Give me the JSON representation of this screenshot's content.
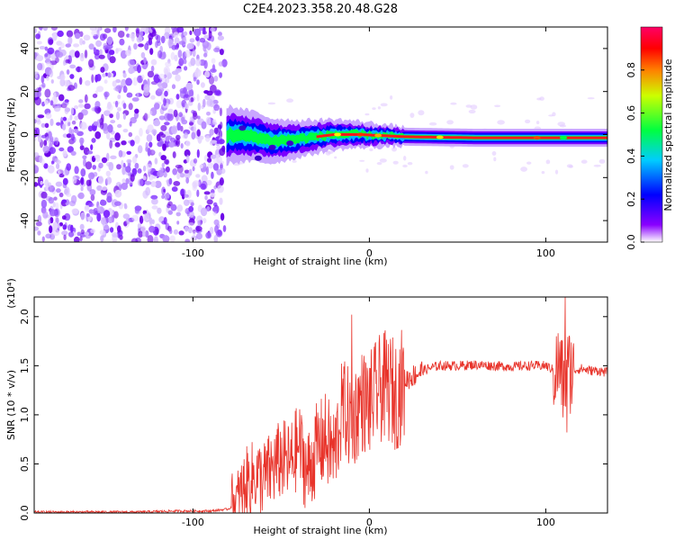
{
  "title": "C2E4.2023.358.20.48.G28",
  "chart_data": [
    {
      "type": "heatmap",
      "xlabel": "Height of straight line (km)",
      "ylabel": "Frequency (Hz)",
      "xlim": [
        -190,
        135
      ],
      "ylim": [
        -50,
        50
      ],
      "xticks": [
        -100,
        0,
        100
      ],
      "yticks": [
        -40,
        -20,
        0,
        20,
        40
      ],
      "noise_region_x": [
        -190,
        -82
      ],
      "signal_center_frequency": [
        {
          "x": -80,
          "f": 0
        },
        {
          "x": -65,
          "f": -1
        },
        {
          "x": -55,
          "f": -3
        },
        {
          "x": -40,
          "f": -2
        },
        {
          "x": -20,
          "f": 0
        },
        {
          "x": -5,
          "f": 0
        },
        {
          "x": 20,
          "f": -1
        },
        {
          "x": 60,
          "f": -1.5
        },
        {
          "x": 110,
          "f": -1.5
        },
        {
          "x": 135,
          "f": -1.5
        }
      ],
      "colorbar": {
        "label": "Normalized spectral amplitude",
        "ticks": [
          "0.0",
          "0.2",
          "0.4",
          "0.6",
          "0.8"
        ],
        "range": [
          0,
          1
        ],
        "colors": [
          "#ffffff",
          "#7a00ff",
          "#0000ff",
          "#00ccff",
          "#00ff00",
          "#ffff00",
          "#ff0000",
          "#ff0066"
        ]
      }
    },
    {
      "type": "line",
      "xlabel": "Height of straight line (km)",
      "ylabel": "SNR (10 * v/v)",
      "y_multiplier": "(x10⁴)",
      "xlim": [
        -190,
        135
      ],
      "ylim": [
        0,
        2.2
      ],
      "xticks": [
        -100,
        0,
        100
      ],
      "yticks": [
        "0.0",
        "0.5",
        "1.0",
        "1.5",
        "2.0"
      ],
      "color": "#e8332a",
      "series": [
        {
          "x": [
            -190,
            -170,
            -150,
            -130,
            -110,
            -90,
            -80,
            -75,
            -70,
            -65,
            -60,
            -55,
            -50,
            -45,
            -40,
            -35,
            -30,
            -25,
            -20,
            -15,
            -10,
            -5,
            0,
            5,
            10,
            15,
            20,
            25,
            30,
            35,
            40,
            50,
            60,
            70,
            80,
            90,
            100,
            105,
            108,
            110,
            112,
            115,
            120,
            125,
            130,
            135
          ],
          "values": [
            0.01,
            0.01,
            0.01,
            0.01,
            0.02,
            0.02,
            0.04,
            0.1,
            0.3,
            0.38,
            0.35,
            0.45,
            0.55,
            0.5,
            0.7,
            0.4,
            0.65,
            0.75,
            0.6,
            1.1,
            0.9,
            1.15,
            1.1,
            1.25,
            1.3,
            1.2,
            1.35,
            1.4,
            1.45,
            1.48,
            1.5,
            1.5,
            1.51,
            1.5,
            1.49,
            1.5,
            1.5,
            1.45,
            1.5,
            1.3,
            1.45,
            1.45,
            1.47,
            1.45,
            1.45,
            1.43
          ]
        }
      ],
      "peaks": [
        {
          "x": -10,
          "y": 2.02
        },
        {
          "x": 9,
          "y": 1.86
        },
        {
          "x": 111,
          "y": 2.2
        },
        {
          "x": 112,
          "y": 0.82
        }
      ]
    }
  ]
}
